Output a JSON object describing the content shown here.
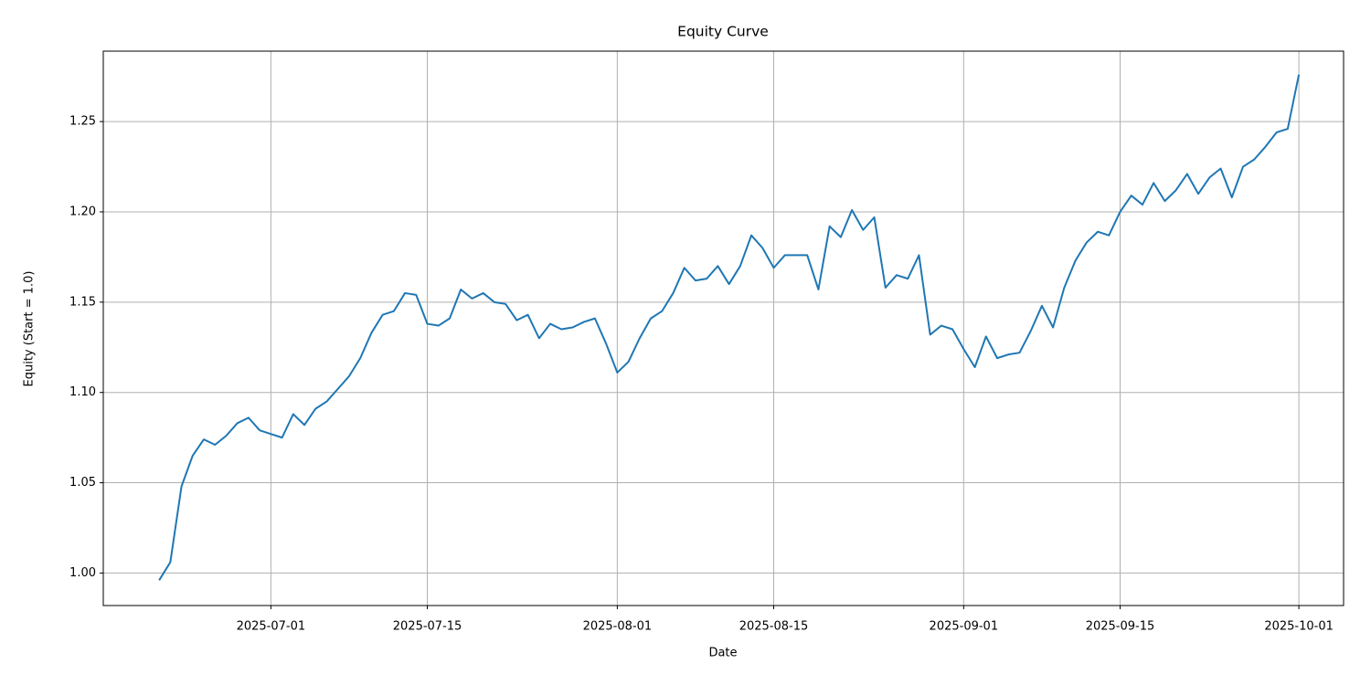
{
  "chart_data": {
    "type": "line",
    "title": "Equity Curve",
    "x_label": "Date",
    "y_label": "Equity (Start = 1.0)",
    "x": [
      "2025-06-21",
      "2025-06-22",
      "2025-06-23",
      "2025-06-24",
      "2025-06-25",
      "2025-06-26",
      "2025-06-27",
      "2025-06-28",
      "2025-06-29",
      "2025-06-30",
      "2025-07-01",
      "2025-07-02",
      "2025-07-03",
      "2025-07-04",
      "2025-07-05",
      "2025-07-06",
      "2025-07-07",
      "2025-07-08",
      "2025-07-09",
      "2025-07-10",
      "2025-07-11",
      "2025-07-12",
      "2025-07-13",
      "2025-07-14",
      "2025-07-15",
      "2025-07-16",
      "2025-07-17",
      "2025-07-18",
      "2025-07-19",
      "2025-07-20",
      "2025-07-21",
      "2025-07-22",
      "2025-07-23",
      "2025-07-24",
      "2025-07-25",
      "2025-07-26",
      "2025-07-27",
      "2025-07-28",
      "2025-07-29",
      "2025-07-30",
      "2025-07-31",
      "2025-08-01",
      "2025-08-02",
      "2025-08-03",
      "2025-08-04",
      "2025-08-05",
      "2025-08-06",
      "2025-08-07",
      "2025-08-08",
      "2025-08-09",
      "2025-08-10",
      "2025-08-11",
      "2025-08-12",
      "2025-08-13",
      "2025-08-14",
      "2025-08-15",
      "2025-08-16",
      "2025-08-17",
      "2025-08-18",
      "2025-08-19",
      "2025-08-20",
      "2025-08-21",
      "2025-08-22",
      "2025-08-23",
      "2025-08-24",
      "2025-08-25",
      "2025-08-26",
      "2025-08-27",
      "2025-08-28",
      "2025-08-29",
      "2025-08-30",
      "2025-08-31",
      "2025-09-01",
      "2025-09-02",
      "2025-09-03",
      "2025-09-04",
      "2025-09-05",
      "2025-09-06",
      "2025-09-07",
      "2025-09-08",
      "2025-09-09",
      "2025-09-10",
      "2025-09-11",
      "2025-09-12",
      "2025-09-13",
      "2025-09-14",
      "2025-09-15",
      "2025-09-16",
      "2025-09-17",
      "2025-09-18",
      "2025-09-19",
      "2025-09-20",
      "2025-09-21",
      "2025-09-22",
      "2025-09-23",
      "2025-09-24",
      "2025-09-25",
      "2025-09-26",
      "2025-09-27",
      "2025-09-28",
      "2025-09-29",
      "2025-09-30",
      "2025-10-01"
    ],
    "series": [
      {
        "name": "Equity",
        "color": "#1f77b4",
        "values": [
          0.996,
          1.006,
          1.048,
          1.065,
          1.074,
          1.071,
          1.076,
          1.083,
          1.086,
          1.079,
          1.077,
          1.075,
          1.088,
          1.082,
          1.091,
          1.095,
          1.102,
          1.109,
          1.119,
          1.133,
          1.143,
          1.145,
          1.155,
          1.154,
          1.138,
          1.137,
          1.141,
          1.157,
          1.152,
          1.155,
          1.15,
          1.149,
          1.14,
          1.143,
          1.13,
          1.138,
          1.135,
          1.136,
          1.139,
          1.141,
          1.127,
          1.111,
          1.117,
          1.13,
          1.141,
          1.145,
          1.155,
          1.169,
          1.162,
          1.163,
          1.17,
          1.16,
          1.17,
          1.187,
          1.18,
          1.169,
          1.176,
          1.176,
          1.176,
          1.157,
          1.192,
          1.186,
          1.201,
          1.19,
          1.197,
          1.158,
          1.165,
          1.163,
          1.176,
          1.132,
          1.137,
          1.135,
          1.124,
          1.114,
          1.131,
          1.119,
          1.121,
          1.122,
          1.134,
          1.148,
          1.136,
          1.158,
          1.173,
          1.183,
          1.189,
          1.187,
          1.2,
          1.209,
          1.204,
          1.216,
          1.206,
          1.212,
          1.221,
          1.21,
          1.219,
          1.224,
          1.208,
          1.225,
          1.229,
          1.236,
          1.244,
          1.246,
          1.276
        ]
      }
    ],
    "xlim": [
      "2025-06-16",
      "2025-10-05"
    ],
    "xticks": [
      "2025-07-01",
      "2025-07-15",
      "2025-08-01",
      "2025-08-15",
      "2025-09-01",
      "2025-09-15",
      "2025-10-01"
    ],
    "ylim": [
      0.982,
      1.289
    ],
    "yticks": [
      {
        "value": 1.0,
        "label": "1.00"
      },
      {
        "value": 1.05,
        "label": "1.05"
      },
      {
        "value": 1.1,
        "label": "1.10"
      },
      {
        "value": 1.15,
        "label": "1.15"
      },
      {
        "value": 1.2,
        "label": "1.20"
      },
      {
        "value": 1.25,
        "label": "1.25"
      }
    ],
    "grid": true
  }
}
